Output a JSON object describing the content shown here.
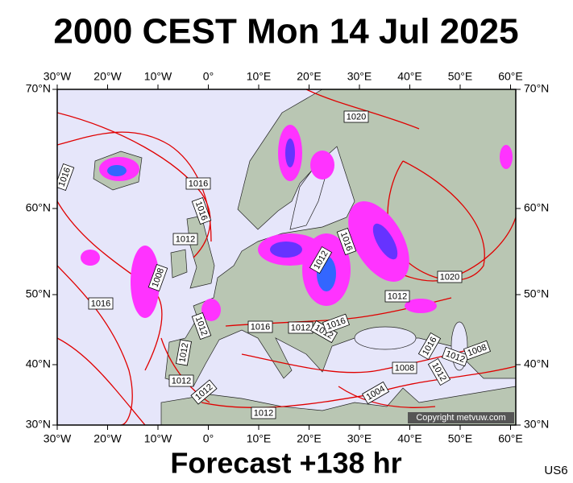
{
  "header": {
    "title": "2000 CEST Mon 14 Jul 2025"
  },
  "longitude_labels": [
    "30°W",
    "20°W",
    "10°W",
    "0°",
    "10°E",
    "20°E",
    "30°E",
    "40°E",
    "50°E",
    "60°E"
  ],
  "latitude_labels": [
    "70°N",
    "60°N",
    "50°N",
    "40°N",
    "30°N"
  ],
  "isobar_labels": [
    "1020",
    "1016",
    "1016",
    "1016",
    "1012",
    "1016",
    "1012",
    "1008",
    "1020",
    "1016",
    "1012",
    "1016",
    "1012",
    "1012",
    "1016",
    "1012",
    "1016",
    "1012",
    "1008",
    "1012",
    "1008",
    "1012",
    "1012",
    "1012",
    "1004",
    "1012"
  ],
  "copyright": "Copyright metvuw.com",
  "footer": {
    "forecast": "Forecast +138 hr",
    "code": "US6"
  }
}
